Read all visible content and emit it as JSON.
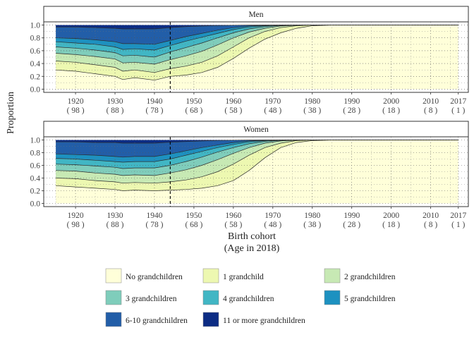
{
  "chart_data": {
    "type": "area",
    "stacked": true,
    "grid": true,
    "legend_position": "bottom",
    "xlabel": "Birth cohort",
    "xlabel_line2": "(Age in 2018)",
    "ylabel": "Proportion",
    "ylim": [
      0,
      1
    ],
    "xlim": [
      1915,
      2017
    ],
    "y_ticks": [
      "0.0",
      "0.2",
      "0.4",
      "0.6",
      "0.8",
      "1.0"
    ],
    "x_ticks": [
      {
        "value": 1920,
        "year": "1920",
        "age": "( 98 )"
      },
      {
        "value": 1930,
        "year": "1930",
        "age": "( 88 )"
      },
      {
        "value": 1940,
        "year": "1940",
        "age": "( 78 )"
      },
      {
        "value": 1950,
        "year": "1950",
        "age": "( 68 )"
      },
      {
        "value": 1960,
        "year": "1960",
        "age": "( 58 )"
      },
      {
        "value": 1970,
        "year": "1970",
        "age": "( 48 )"
      },
      {
        "value": 1980,
        "year": "1980",
        "age": "( 38 )"
      },
      {
        "value": 1990,
        "year": "1990",
        "age": "( 28 )"
      },
      {
        "value": 2000,
        "year": "2000",
        "age": "( 18 )"
      },
      {
        "value": 2010,
        "year": "2010",
        "age": "( 8 )"
      },
      {
        "value": 2017,
        "year": "2017",
        "age": "( 1 )"
      }
    ],
    "reference_line_x": 1944,
    "categories": [
      {
        "name": "No grandchildren",
        "color": "#FFFFD9"
      },
      {
        "name": "1 grandchild",
        "color": "#EDF8B1"
      },
      {
        "name": "2 grandchildren",
        "color": "#C7E9B4"
      },
      {
        "name": "3 grandchildren",
        "color": "#7FCDBB"
      },
      {
        "name": "4 grandchildren",
        "color": "#41B6C4"
      },
      {
        "name": "5 grandchildren",
        "color": "#1D91C0"
      },
      {
        "name": "6-10 grandchildren",
        "color": "#225EA8"
      },
      {
        "name": "11 or more grandchildren",
        "color": "#0C2C84"
      }
    ],
    "panels": [
      {
        "label": "Men",
        "x": [
          1915,
          1920,
          1925,
          1930,
          1932,
          1935,
          1940,
          1944,
          1948,
          1952,
          1956,
          1960,
          1964,
          1968,
          1972,
          1976,
          1980,
          1985,
          1990,
          2017
        ],
        "cumulative": [
          [
            0.3,
            0.28,
            0.24,
            0.2,
            0.15,
            0.18,
            0.14,
            0.2,
            0.22,
            0.26,
            0.34,
            0.48,
            0.64,
            0.78,
            0.88,
            0.95,
            0.99,
            1.0,
            1.0,
            1.0
          ],
          [
            0.44,
            0.42,
            0.38,
            0.34,
            0.28,
            0.3,
            0.26,
            0.32,
            0.36,
            0.42,
            0.52,
            0.66,
            0.8,
            0.9,
            0.96,
            0.99,
            1.0,
            1.0,
            1.0,
            1.0
          ],
          [
            0.56,
            0.54,
            0.51,
            0.47,
            0.41,
            0.42,
            0.39,
            0.46,
            0.52,
            0.59,
            0.69,
            0.8,
            0.89,
            0.95,
            0.985,
            0.997,
            1.0,
            1.0,
            1.0,
            1.0
          ],
          [
            0.66,
            0.64,
            0.61,
            0.57,
            0.52,
            0.53,
            0.5,
            0.58,
            0.65,
            0.72,
            0.8,
            0.88,
            0.94,
            0.975,
            0.993,
            0.999,
            1.0,
            1.0,
            1.0,
            1.0
          ],
          [
            0.74,
            0.72,
            0.7,
            0.66,
            0.62,
            0.63,
            0.61,
            0.68,
            0.75,
            0.81,
            0.87,
            0.93,
            0.97,
            0.988,
            0.997,
            1.0,
            1.0,
            1.0,
            1.0,
            1.0
          ],
          [
            0.8,
            0.79,
            0.77,
            0.74,
            0.71,
            0.71,
            0.7,
            0.76,
            0.82,
            0.87,
            0.92,
            0.96,
            0.985,
            0.995,
            0.999,
            1.0,
            1.0,
            1.0,
            1.0,
            1.0
          ],
          [
            0.97,
            0.97,
            0.96,
            0.95,
            0.94,
            0.94,
            0.94,
            0.96,
            0.975,
            0.985,
            0.992,
            0.997,
            0.999,
            1.0,
            1.0,
            1.0,
            1.0,
            1.0,
            1.0,
            1.0
          ],
          [
            1.0,
            1.0,
            1.0,
            1.0,
            1.0,
            1.0,
            1.0,
            1.0,
            1.0,
            1.0,
            1.0,
            1.0,
            1.0,
            1.0,
            1.0,
            1.0,
            1.0,
            1.0,
            1.0,
            1.0
          ]
        ]
      },
      {
        "label": "Women",
        "x": [
          1915,
          1920,
          1925,
          1930,
          1932,
          1935,
          1940,
          1944,
          1948,
          1952,
          1956,
          1960,
          1964,
          1968,
          1972,
          1976,
          1980,
          1985,
          1990,
          2017
        ],
        "cumulative": [
          [
            0.28,
            0.26,
            0.24,
            0.22,
            0.2,
            0.21,
            0.2,
            0.21,
            0.22,
            0.24,
            0.28,
            0.36,
            0.52,
            0.72,
            0.88,
            0.96,
            0.99,
            1.0,
            1.0,
            1.0
          ],
          [
            0.4,
            0.39,
            0.36,
            0.34,
            0.32,
            0.33,
            0.32,
            0.34,
            0.37,
            0.42,
            0.5,
            0.62,
            0.76,
            0.88,
            0.95,
            0.99,
            1.0,
            1.0,
            1.0,
            1.0
          ],
          [
            0.52,
            0.51,
            0.48,
            0.46,
            0.44,
            0.45,
            0.44,
            0.48,
            0.53,
            0.6,
            0.69,
            0.79,
            0.88,
            0.95,
            0.985,
            0.997,
            1.0,
            1.0,
            1.0,
            1.0
          ],
          [
            0.62,
            0.61,
            0.59,
            0.57,
            0.55,
            0.56,
            0.56,
            0.6,
            0.66,
            0.73,
            0.81,
            0.88,
            0.94,
            0.978,
            0.994,
            0.999,
            1.0,
            1.0,
            1.0,
            1.0
          ],
          [
            0.71,
            0.7,
            0.68,
            0.66,
            0.65,
            0.66,
            0.66,
            0.7,
            0.76,
            0.82,
            0.88,
            0.93,
            0.97,
            0.99,
            0.998,
            1.0,
            1.0,
            1.0,
            1.0,
            1.0
          ],
          [
            0.78,
            0.77,
            0.76,
            0.74,
            0.73,
            0.74,
            0.74,
            0.78,
            0.83,
            0.88,
            0.92,
            0.96,
            0.985,
            0.995,
            0.999,
            1.0,
            1.0,
            1.0,
            1.0,
            1.0
          ],
          [
            0.97,
            0.97,
            0.96,
            0.96,
            0.95,
            0.95,
            0.95,
            0.965,
            0.975,
            0.985,
            0.992,
            0.997,
            0.999,
            1.0,
            1.0,
            1.0,
            1.0,
            1.0,
            1.0,
            1.0
          ],
          [
            1.0,
            1.0,
            1.0,
            1.0,
            1.0,
            1.0,
            1.0,
            1.0,
            1.0,
            1.0,
            1.0,
            1.0,
            1.0,
            1.0,
            1.0,
            1.0,
            1.0,
            1.0,
            1.0,
            1.0
          ]
        ]
      }
    ]
  }
}
